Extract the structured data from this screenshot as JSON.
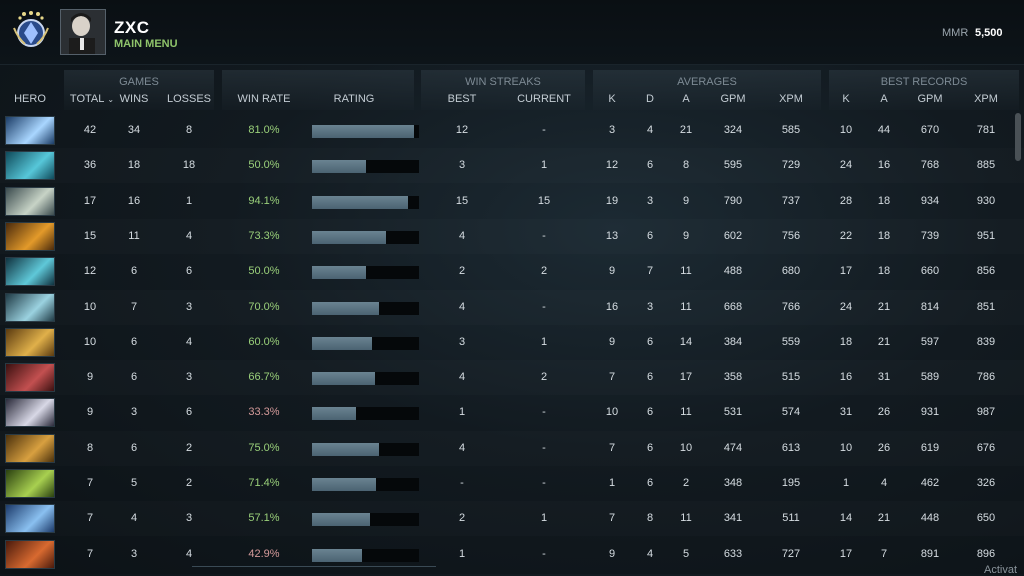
{
  "header": {
    "player_name": "ZXC",
    "subtitle": "MAIN MENU",
    "mmr_label": "MMR",
    "mmr_value": "5,500"
  },
  "groups": {
    "games": "GAMES",
    "win_streaks": "WIN STREAKS",
    "averages": "AVERAGES",
    "best_records": "BEST RECORDS"
  },
  "columns": {
    "hero": "HERO",
    "total": "TOTAL",
    "wins": "WINS",
    "losses": "LOSSES",
    "win_rate": "WIN RATE",
    "rating": "RATING",
    "best": "BEST",
    "current": "CURRENT",
    "avg_k": "K",
    "avg_d": "D",
    "avg_a": "A",
    "avg_gpm": "GPM",
    "avg_xpm": "XPM",
    "best_k": "K",
    "best_a": "A",
    "best_gpm": "GPM",
    "best_xpm": "XPM"
  },
  "rows": [
    {
      "total": "42",
      "wins": "34",
      "losses": "8",
      "win_rate": "81.0%",
      "rating": 0.95,
      "best": "12",
      "current": "-",
      "k": "3",
      "d": "4",
      "a": "21",
      "gpm": "324",
      "xpm": "585",
      "bk": "10",
      "ba": "44",
      "bgpm": "670",
      "bxpm": "781",
      "portrait": [
        "#1b3c66",
        "#a9d6ff"
      ]
    },
    {
      "total": "36",
      "wins": "18",
      "losses": "18",
      "win_rate": "50.0%",
      "rating": 0.5,
      "best": "3",
      "current": "1",
      "k": "12",
      "d": "6",
      "a": "8",
      "gpm": "595",
      "xpm": "729",
      "bk": "24",
      "ba": "16",
      "bgpm": "768",
      "bxpm": "885",
      "portrait": [
        "#0f4a5a",
        "#57c7d9"
      ]
    },
    {
      "total": "17",
      "wins": "16",
      "losses": "1",
      "win_rate": "94.1%",
      "rating": 0.9,
      "best": "15",
      "current": "15",
      "k": "19",
      "d": "3",
      "a": "9",
      "gpm": "790",
      "xpm": "737",
      "bk": "28",
      "ba": "18",
      "bgpm": "934",
      "bxpm": "930",
      "portrait": [
        "#3a4a4d",
        "#c7d3c6"
      ]
    },
    {
      "total": "15",
      "wins": "11",
      "losses": "4",
      "win_rate": "73.3%",
      "rating": 0.69,
      "best": "4",
      "current": "-",
      "k": "13",
      "d": "6",
      "a": "9",
      "gpm": "602",
      "xpm": "756",
      "bk": "22",
      "ba": "18",
      "bgpm": "739",
      "bxpm": "951",
      "portrait": [
        "#4a2a0c",
        "#e39a2a"
      ]
    },
    {
      "total": "12",
      "wins": "6",
      "losses": "6",
      "win_rate": "50.0%",
      "rating": 0.5,
      "best": "2",
      "current": "2",
      "k": "9",
      "d": "7",
      "a": "11",
      "gpm": "488",
      "xpm": "680",
      "bk": "17",
      "ba": "18",
      "bgpm": "660",
      "bxpm": "856",
      "portrait": [
        "#10323f",
        "#5fc8d8"
      ]
    },
    {
      "total": "10",
      "wins": "7",
      "losses": "3",
      "win_rate": "70.0%",
      "rating": 0.63,
      "best": "4",
      "current": "-",
      "k": "16",
      "d": "3",
      "a": "11",
      "gpm": "668",
      "xpm": "766",
      "bk": "24",
      "ba": "21",
      "bgpm": "814",
      "bxpm": "851",
      "portrait": [
        "#1f3a45",
        "#9bd2e0"
      ]
    },
    {
      "total": "10",
      "wins": "6",
      "losses": "4",
      "win_rate": "60.0%",
      "rating": 0.56,
      "best": "3",
      "current": "1",
      "k": "9",
      "d": "6",
      "a": "14",
      "gpm": "384",
      "xpm": "559",
      "bk": "18",
      "ba": "21",
      "bgpm": "597",
      "bxpm": "839",
      "portrait": [
        "#5a3a10",
        "#e0b04a"
      ]
    },
    {
      "total": "9",
      "wins": "6",
      "losses": "3",
      "win_rate": "66.7%",
      "rating": 0.59,
      "best": "4",
      "current": "2",
      "k": "7",
      "d": "6",
      "a": "17",
      "gpm": "358",
      "xpm": "515",
      "bk": "16",
      "ba": "31",
      "bgpm": "589",
      "bxpm": "786",
      "portrait": [
        "#3a1010",
        "#c35050"
      ]
    },
    {
      "total": "9",
      "wins": "3",
      "losses": "6",
      "win_rate": "33.3%",
      "rating": 0.41,
      "best": "1",
      "current": "-",
      "k": "10",
      "d": "6",
      "a": "11",
      "gpm": "531",
      "xpm": "574",
      "bk": "31",
      "ba": "26",
      "bgpm": "931",
      "bxpm": "987",
      "portrait": [
        "#2a2a3a",
        "#d8d8e6"
      ]
    },
    {
      "total": "8",
      "wins": "6",
      "losses": "2",
      "win_rate": "75.0%",
      "rating": 0.63,
      "best": "4",
      "current": "-",
      "k": "7",
      "d": "6",
      "a": "10",
      "gpm": "474",
      "xpm": "613",
      "bk": "10",
      "ba": "26",
      "bgpm": "619",
      "bxpm": "676",
      "portrait": [
        "#4a300c",
        "#d8a040"
      ]
    },
    {
      "total": "7",
      "wins": "5",
      "losses": "2",
      "win_rate": "71.4%",
      "rating": 0.6,
      "best": "-",
      "current": "-",
      "k": "1",
      "d": "6",
      "a": "2",
      "gpm": "348",
      "xpm": "195",
      "bk": "1",
      "ba": "4",
      "bgpm": "462",
      "bxpm": "326",
      "portrait": [
        "#2a4010",
        "#a8d050"
      ]
    },
    {
      "total": "7",
      "wins": "4",
      "losses": "3",
      "win_rate": "57.1%",
      "rating": 0.54,
      "best": "2",
      "current": "1",
      "k": "7",
      "d": "8",
      "a": "11",
      "gpm": "341",
      "xpm": "511",
      "bk": "14",
      "ba": "21",
      "bgpm": "448",
      "bxpm": "650",
      "portrait": [
        "#1c3a6a",
        "#8ac0f0"
      ]
    },
    {
      "total": "7",
      "wins": "3",
      "losses": "4",
      "win_rate": "42.9%",
      "rating": 0.47,
      "best": "1",
      "current": "-",
      "k": "9",
      "d": "4",
      "a": "5",
      "gpm": "633",
      "xpm": "727",
      "bk": "17",
      "ba": "7",
      "bgpm": "891",
      "bxpm": "896",
      "portrait": [
        "#4a1a0c",
        "#d86a30"
      ]
    }
  ],
  "footer": {
    "activate": "Activat"
  }
}
